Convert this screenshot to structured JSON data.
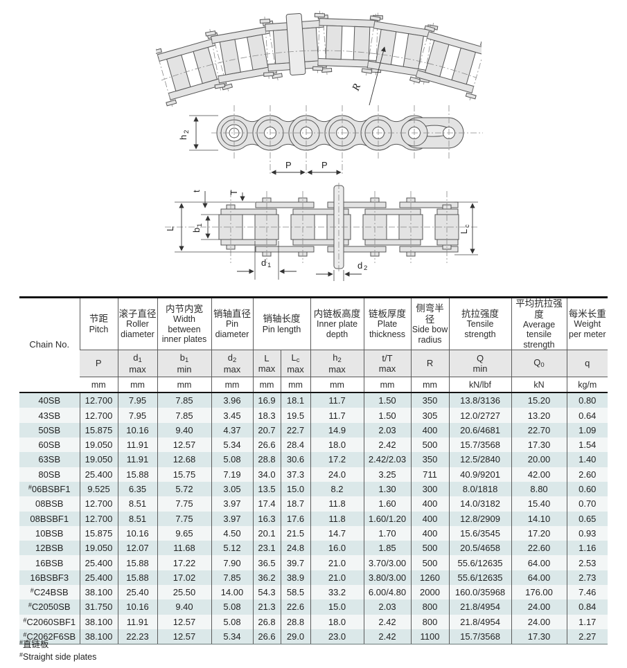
{
  "drawings": {
    "side_bow": {
      "r_label": "R"
    },
    "side_view": {
      "h2_base": "h",
      "h2_sub": "2",
      "p1": "P",
      "p2": "P"
    },
    "plan_view": {
      "t_label": "t",
      "T_label": "T",
      "L_label": "L",
      "b1_base": "b",
      "b1_sub": "1",
      "lc_base": "L",
      "lc_sub": "c",
      "d1_base": "d",
      "d1_sub": "1",
      "d2_base": "d",
      "d2_sub": "2"
    }
  },
  "table": {
    "header": {
      "chain_no": "Chain No.",
      "pitch": {
        "zh": "节距",
        "en": "Pitch",
        "sym": "P",
        "sub": "",
        "suffix": "",
        "unit": "mm"
      },
      "roller": {
        "zh": "滚子直径",
        "en": "Roller diameter",
        "sym": "d",
        "sub": "1",
        "suffix": "max",
        "unit": "mm"
      },
      "width": {
        "zh": "内节内宽",
        "en": "Width between inner plates",
        "sym": "b",
        "sub": "1",
        "suffix": "min",
        "unit": "mm"
      },
      "pin_dia": {
        "zh": "销轴直径",
        "en": "Pin diameter",
        "sym": "d",
        "sub": "2",
        "suffix": "max",
        "unit": "mm"
      },
      "pin_len": {
        "zh": "销轴长度",
        "en": "Pin length"
      },
      "pin_len_l": {
        "sym": "L",
        "sub": "",
        "suffix": "max",
        "unit": "mm"
      },
      "pin_len_lc": {
        "sym": "L",
        "sub": "c",
        "suffix": "max",
        "unit": "mm"
      },
      "plate_depth": {
        "zh": "内链板高度",
        "en": "Inner plate depth",
        "sym": "h",
        "sub": "2",
        "suffix": "max",
        "unit": "mm"
      },
      "thickness": {
        "zh": "链板厚度",
        "en": "Plate thickness",
        "sym": "t/T",
        "sub": "",
        "suffix": "max",
        "unit": "mm"
      },
      "radius": {
        "zh": "侧弯半径",
        "en": "Side bow radius",
        "sym": "R",
        "sub": "",
        "suffix": "",
        "unit": "mm"
      },
      "tensile": {
        "zh": "抗拉强度",
        "en": "Tensile strength",
        "sym": "Q",
        "sub": "",
        "suffix": "min",
        "unit": "kN/lbf"
      },
      "avg_tensile": {
        "zh": "平均抗拉强度",
        "en": "Average tensile strength",
        "sym": "Q",
        "sub": "0",
        "suffix": "",
        "unit": "kN"
      },
      "weight": {
        "zh": "每米长重",
        "en": "Weight per meter",
        "sym": "q",
        "sub": "",
        "suffix": "",
        "unit": "kg/m"
      }
    },
    "rows": [
      {
        "prefix": "",
        "name": "40SB",
        "values": [
          "12.700",
          "7.95",
          "7.85",
          "3.96",
          "16.9",
          "18.1",
          "11.7",
          "1.50",
          "350",
          "13.8/3136",
          "15.20",
          "0.80"
        ]
      },
      {
        "prefix": "",
        "name": "43SB",
        "values": [
          "12.700",
          "7.95",
          "7.85",
          "3.45",
          "18.3",
          "19.5",
          "11.7",
          "1.50",
          "305",
          "12.0/2727",
          "13.20",
          "0.64"
        ]
      },
      {
        "prefix": "",
        "name": "50SB",
        "values": [
          "15.875",
          "10.16",
          "9.40",
          "4.37",
          "20.7",
          "22.7",
          "14.9",
          "2.03",
          "400",
          "20.6/4681",
          "22.70",
          "1.09"
        ]
      },
      {
        "prefix": "",
        "name": "60SB",
        "values": [
          "19.050",
          "11.91",
          "12.57",
          "5.34",
          "26.6",
          "28.4",
          "18.0",
          "2.42",
          "500",
          "15.7/3568",
          "17.30",
          "1.54"
        ]
      },
      {
        "prefix": "",
        "name": "63SB",
        "values": [
          "19.050",
          "11.91",
          "12.68",
          "5.08",
          "28.8",
          "30.6",
          "17.2",
          "2.42/2.03",
          "350",
          "12.5/2840",
          "20.00",
          "1.40"
        ]
      },
      {
        "prefix": "",
        "name": "80SB",
        "values": [
          "25.400",
          "15.88",
          "15.75",
          "7.19",
          "34.0",
          "37.3",
          "24.0",
          "3.25",
          "711",
          "40.9/9201",
          "42.00",
          "2.60"
        ]
      },
      {
        "prefix": "#",
        "name": "06BSBF1",
        "values": [
          "9.525",
          "6.35",
          "5.72",
          "3.05",
          "13.5",
          "15.0",
          "8.2",
          "1.30",
          "300",
          "8.0/1818",
          "8.80",
          "0.60"
        ]
      },
      {
        "prefix": "",
        "name": "08BSB",
        "values": [
          "12.700",
          "8.51",
          "7.75",
          "3.97",
          "17.4",
          "18.7",
          "11.8",
          "1.60",
          "400",
          "14.0/3182",
          "15.40",
          "0.70"
        ]
      },
      {
        "prefix": "",
        "name": "08BSBF1",
        "values": [
          "12.700",
          "8.51",
          "7.75",
          "3.97",
          "16.3",
          "17.6",
          "11.8",
          "1.60/1.20",
          "400",
          "12.8/2909",
          "14.10",
          "0.65"
        ]
      },
      {
        "prefix": "",
        "name": "10BSB",
        "values": [
          "15.875",
          "10.16",
          "9.65",
          "4.50",
          "20.1",
          "21.5",
          "14.7",
          "1.70",
          "400",
          "15.6/3545",
          "17.20",
          "0.93"
        ]
      },
      {
        "prefix": "",
        "name": "12BSB",
        "values": [
          "19.050",
          "12.07",
          "11.68",
          "5.12",
          "23.1",
          "24.8",
          "16.0",
          "1.85",
          "500",
          "20.5/4658",
          "22.60",
          "1.16"
        ]
      },
      {
        "prefix": "",
        "name": "16BSB",
        "values": [
          "25.400",
          "15.88",
          "17.22",
          "7.90",
          "36.5",
          "39.7",
          "21.0",
          "3.70/3.00",
          "500",
          "55.6/12635",
          "64.00",
          "2.53"
        ]
      },
      {
        "prefix": "",
        "name": "16BSBF3",
        "values": [
          "25.400",
          "15.88",
          "17.02",
          "7.85",
          "36.2",
          "38.9",
          "21.0",
          "3.80/3.00",
          "1260",
          "55.6/12635",
          "64.00",
          "2.73"
        ]
      },
      {
        "prefix": "#",
        "name": "C24BSB",
        "values": [
          "38.100",
          "25.40",
          "25.50",
          "14.00",
          "54.3",
          "58.5",
          "33.2",
          "6.00/4.80",
          "2000",
          "160.0/35968",
          "176.00",
          "7.46"
        ]
      },
      {
        "prefix": "#",
        "name": "C2050SB",
        "values": [
          "31.750",
          "10.16",
          "9.40",
          "5.08",
          "21.3",
          "22.6",
          "15.0",
          "2.03",
          "800",
          "21.8/4954",
          "24.00",
          "0.84"
        ]
      },
      {
        "prefix": "#",
        "name": "C2060SBF1",
        "values": [
          "38.100",
          "11.91",
          "12.57",
          "5.08",
          "26.8",
          "28.8",
          "18.0",
          "2.42",
          "800",
          "21.8/4954",
          "24.00",
          "1.17"
        ]
      },
      {
        "prefix": "#",
        "name": "C2062F6SB",
        "values": [
          "38.100",
          "22.23",
          "12.57",
          "5.34",
          "26.6",
          "29.0",
          "23.0",
          "2.42",
          "1100",
          "15.7/3568",
          "17.30",
          "2.27"
        ]
      }
    ]
  },
  "footnotes": {
    "marker": "#",
    "zh": "直链板",
    "en": "Straight side plates"
  },
  "colors": {
    "row_odd": "#dbe8e9",
    "row_even": "#f3f6f6",
    "header_sym_bg": "#e7e7e7",
    "border_dark": "#141414",
    "drawing_fill": "#e3e3e3"
  }
}
